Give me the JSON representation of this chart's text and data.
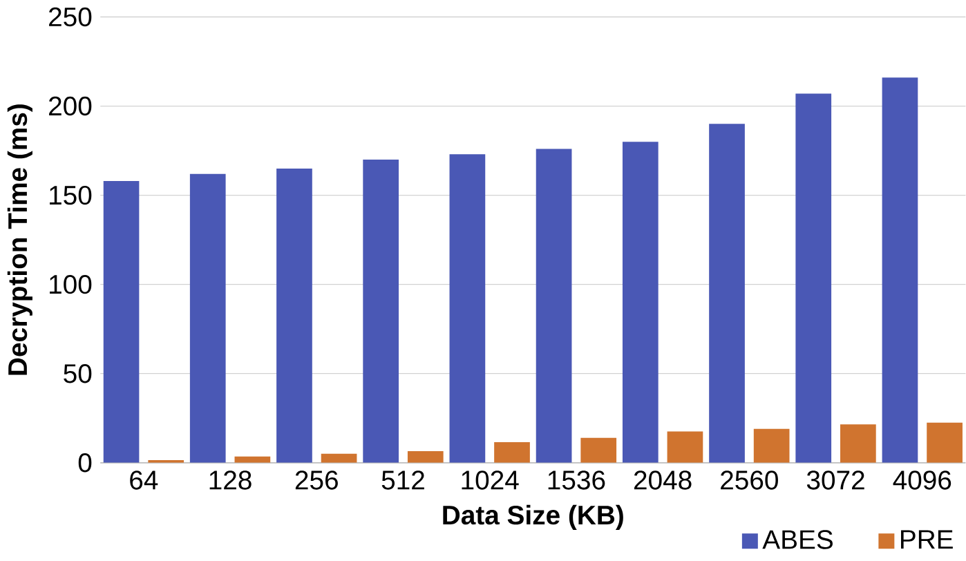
{
  "chart_data": {
    "type": "bar",
    "xlabel": "Data Size (KB)",
    "ylabel": "Decryption Time (ms)",
    "categories": [
      "64",
      "128",
      "256",
      "512",
      "1024",
      "1536",
      "2048",
      "2560",
      "3072",
      "4096"
    ],
    "series": [
      {
        "name": "ABES",
        "color": "#4a58b5",
        "values": [
          158,
          162,
          165,
          170,
          173,
          176,
          180,
          190,
          207,
          216
        ]
      },
      {
        "name": "PRE",
        "color": "#d0742f",
        "values": [
          1.5,
          3.5,
          5,
          6.5,
          11.5,
          14,
          17.5,
          19,
          21.5,
          22.5
        ]
      }
    ],
    "ylim": [
      0,
      250
    ],
    "yticks": [
      0,
      50,
      100,
      150,
      200,
      250
    ],
    "grid": "y",
    "legend": "bottom right"
  }
}
